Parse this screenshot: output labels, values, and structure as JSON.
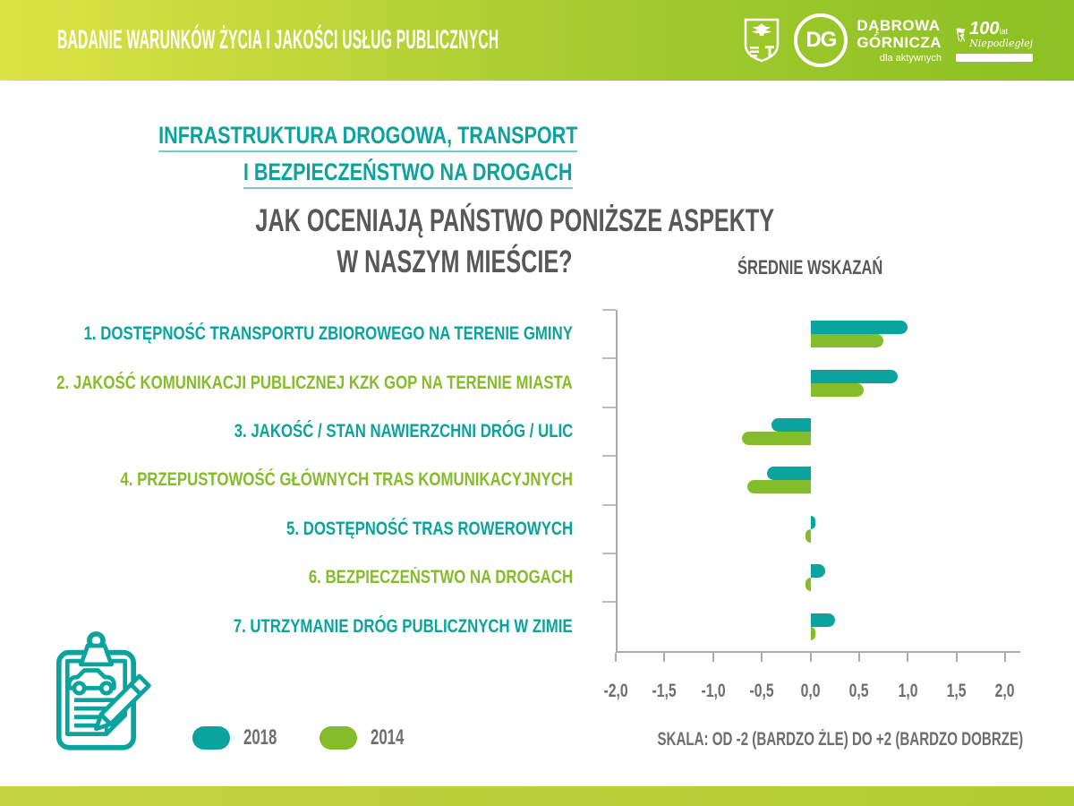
{
  "palette": {
    "teal": "#0AA39E",
    "green": "#85BC2B",
    "title_dark": "#58585A",
    "label_gray": "#6D6E70",
    "axis_gray": "#ABABAB",
    "header_gradient": [
      "#DDE344",
      "#8CC023"
    ],
    "footer_gradient": [
      "#C3D340",
      "#B2CC33"
    ],
    "white": "#FFFFFF"
  },
  "header": {
    "title": "BADANIE WARUNKÓW ŻYCIA I JAKOŚCI USŁUG PUBLICZNYCH"
  },
  "logos": {
    "city_line1": "DĄBROWA",
    "city_line2": "GÓRNICZA",
    "city_tagline": "dla aktywnych",
    "dg_monogram": "DG",
    "centennial_number": "100",
    "centennial_lat": "lat",
    "centennial_script": "Niepodległej"
  },
  "section": {
    "subtitle_line1": "INFRASTRUKTURA DROGOWA, TRANSPORT",
    "subtitle_line2": "I BEZPIECZEŃSTWO NA DROGACH"
  },
  "question": {
    "line1": "JAK OCENIAJĄ PAŃSTWO PONIŻSZE ASPEKTY",
    "line2": "W NASZYM MIEŚCIE?"
  },
  "legend": {
    "items": [
      {
        "label": "2018",
        "color_key": "teal"
      },
      {
        "label": "2014",
        "color_key": "green"
      }
    ]
  },
  "chart_data": {
    "type": "bar",
    "orientation": "horizontal",
    "title": "ŚREDNIE WSKAZAŃ",
    "categories": [
      "1. DOSTĘPNOŚĆ TRANSPORTU ZBIOROWEGO NA TERENIE GMINY",
      "2. JAKOŚĆ KOMUNIKACJI PUBLICZNEJ KZK GOP NA TERENIE MIASTA",
      "3. JAKOŚĆ / STAN NAWIERZCHNI DRÓG / ULIC",
      "4. PRZEPUSTOWOŚĆ GŁÓWNYCH TRAS KOMUNIKACYJNYCH",
      "5. DOSTĘPNOŚĆ TRAS ROWEROWYCH",
      "6. BEZPIECZEŃSTWO NA DROGACH",
      "7. UTRZYMANIE DRÓG PUBLICZNYCH W ZIMIE"
    ],
    "category_label_colors": [
      "teal",
      "green",
      "teal",
      "green",
      "teal",
      "green",
      "teal"
    ],
    "series": [
      {
        "name": "2018",
        "color": "#0AA39E",
        "values": [
          1.0,
          0.9,
          -0.4,
          -0.45,
          0.05,
          0.15,
          0.25
        ]
      },
      {
        "name": "2014",
        "color": "#85BC2B",
        "values": [
          0.75,
          0.55,
          -0.7,
          -0.65,
          -0.05,
          -0.05,
          0.05
        ]
      }
    ],
    "xlim": [
      -2,
      2
    ],
    "xtick_labels": [
      "-2,0",
      "-1,5",
      "-1,0",
      "-0,5",
      "0,0",
      "0,5",
      "1,0",
      "1,5",
      "2,0"
    ],
    "grid": false,
    "legend_position": "bottom-left",
    "scale_note": "SKALA: OD -2 (BARDZO ŹLE) DO +2 (BARDZO DOBRZE)"
  }
}
